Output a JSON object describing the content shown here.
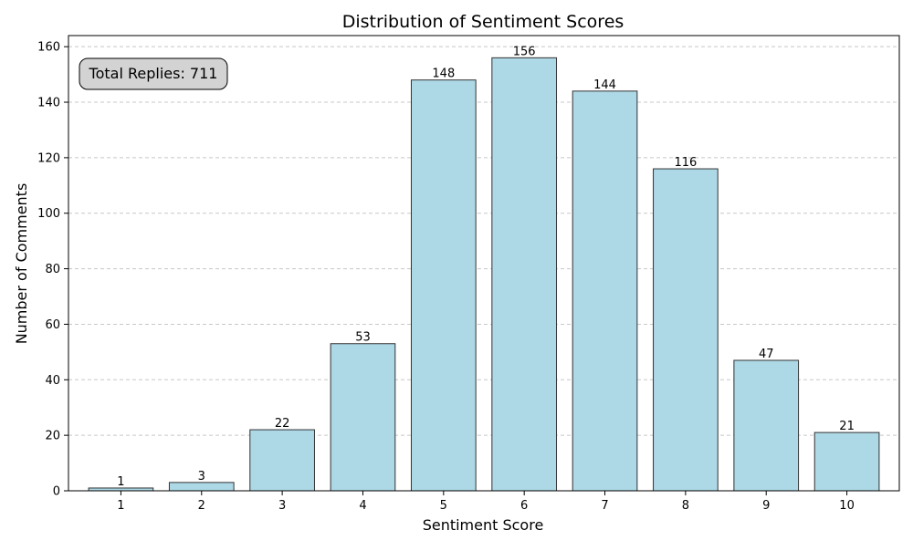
{
  "chart_data": {
    "type": "bar",
    "title": "Distribution of Sentiment Scores",
    "xlabel": "Sentiment Score",
    "ylabel": "Number of Comments",
    "categories": [
      "1",
      "2",
      "3",
      "4",
      "5",
      "6",
      "7",
      "8",
      "9",
      "10"
    ],
    "x_values": [
      1,
      2,
      3,
      4,
      5,
      6,
      7,
      8,
      9,
      10
    ],
    "values": [
      1,
      3,
      22,
      53,
      148,
      156,
      144,
      116,
      47,
      21
    ],
    "ylim": [
      0,
      164
    ],
    "y_ticks": [
      0,
      20,
      40,
      60,
      80,
      100,
      120,
      140,
      160
    ],
    "grid": {
      "y": true,
      "x": false,
      "style": "dashed"
    },
    "annotation": "Total Replies: 711",
    "colors": {
      "bar_fill": "#add8e6",
      "bar_edge": "#333333",
      "grid": "#c8c8c8",
      "annotation_bg": "#d3d3d3"
    }
  }
}
